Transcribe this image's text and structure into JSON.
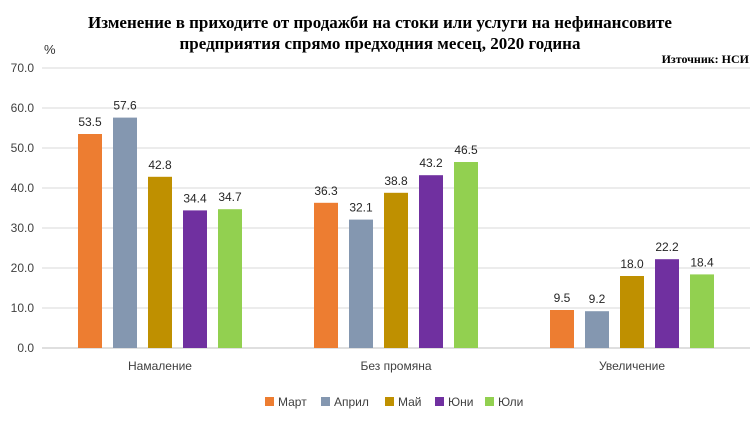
{
  "chart_data": {
    "type": "bar",
    "title": "Изменение в приходите от продажби на стоки или услуги на нефинансовите предприятия спрямо предходния месец, 2020 година",
    "title_lines": [
      "Изменение в приходите от продажби на стоки или услуги на нефинансовите",
      "предприятия спрямо предходния месец, 2020 година"
    ],
    "source": "Източник: НСИ",
    "ylabel": "%",
    "ylim": [
      0,
      70
    ],
    "yticks": [
      "0.0",
      "10.0",
      "20.0",
      "30.0",
      "40.0",
      "50.0",
      "60.0",
      "70.0"
    ],
    "grid": true,
    "legend_position": "bottom",
    "categories": [
      "Намаление",
      "Без промяна",
      "Увеличение"
    ],
    "series": [
      {
        "name": "Март",
        "color": "#ED7D31",
        "values": [
          53.5,
          36.3,
          9.5
        ],
        "labels": [
          "53.5",
          "36.3",
          "9.5"
        ]
      },
      {
        "name": "Април",
        "color": "#8497B0",
        "values": [
          57.6,
          32.1,
          9.2
        ],
        "labels": [
          "57.6",
          "32.1",
          "9.2"
        ]
      },
      {
        "name": "Май",
        "color": "#BF9000",
        "values": [
          42.8,
          38.8,
          18.0
        ],
        "labels": [
          "42.8",
          "38.8",
          "18.0"
        ]
      },
      {
        "name": "Юни",
        "color": "#7030A0",
        "values": [
          34.4,
          43.2,
          22.2
        ],
        "labels": [
          "34.4",
          "43.2",
          "22.2"
        ]
      },
      {
        "name": "Юли",
        "color": "#92D050",
        "values": [
          34.7,
          46.5,
          18.4
        ],
        "labels": [
          "34.7",
          "46.5",
          "18.4"
        ]
      }
    ]
  }
}
